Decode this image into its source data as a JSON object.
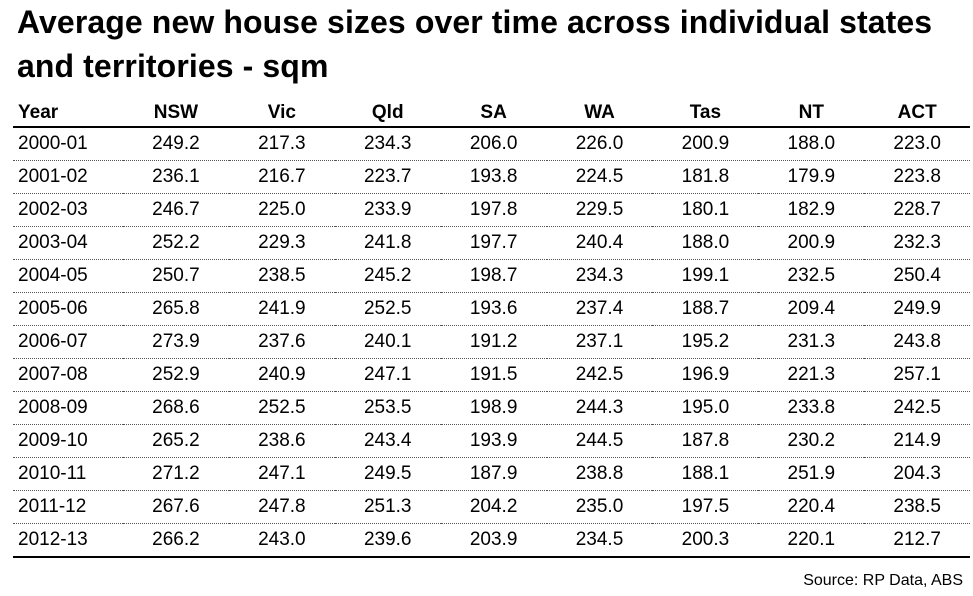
{
  "title": "Average new house sizes over time across individual states and territories - sqm",
  "source": "Source: RP Data, ABS",
  "chart_data": {
    "type": "table",
    "title": "Average new house sizes over time across individual states and territories - sqm",
    "columns": [
      "Year",
      "NSW",
      "Vic",
      "Qld",
      "SA",
      "WA",
      "Tas",
      "NT",
      "ACT"
    ],
    "rows": [
      [
        "2000-01",
        "249.2",
        "217.3",
        "234.3",
        "206.0",
        "226.0",
        "200.9",
        "188.0",
        "223.0"
      ],
      [
        "2001-02",
        "236.1",
        "216.7",
        "223.7",
        "193.8",
        "224.5",
        "181.8",
        "179.9",
        "223.8"
      ],
      [
        "2002-03",
        "246.7",
        "225.0",
        "233.9",
        "197.8",
        "229.5",
        "180.1",
        "182.9",
        "228.7"
      ],
      [
        "2003-04",
        "252.2",
        "229.3",
        "241.8",
        "197.7",
        "240.4",
        "188.0",
        "200.9",
        "232.3"
      ],
      [
        "2004-05",
        "250.7",
        "238.5",
        "245.2",
        "198.7",
        "234.3",
        "199.1",
        "232.5",
        "250.4"
      ],
      [
        "2005-06",
        "265.8",
        "241.9",
        "252.5",
        "193.6",
        "237.4",
        "188.7",
        "209.4",
        "249.9"
      ],
      [
        "2006-07",
        "273.9",
        "237.6",
        "240.1",
        "191.2",
        "237.1",
        "195.2",
        "231.3",
        "243.8"
      ],
      [
        "2007-08",
        "252.9",
        "240.9",
        "247.1",
        "191.5",
        "242.5",
        "196.9",
        "221.3",
        "257.1"
      ],
      [
        "2008-09",
        "268.6",
        "252.5",
        "253.5",
        "198.9",
        "244.3",
        "195.0",
        "233.8",
        "242.5"
      ],
      [
        "2009-10",
        "265.2",
        "238.6",
        "243.4",
        "193.9",
        "244.5",
        "187.8",
        "230.2",
        "214.9"
      ],
      [
        "2010-11",
        "271.2",
        "247.1",
        "249.5",
        "187.9",
        "238.8",
        "188.1",
        "251.9",
        "204.3"
      ],
      [
        "2011-12",
        "267.6",
        "247.8",
        "251.3",
        "204.2",
        "235.0",
        "197.5",
        "220.4",
        "238.5"
      ],
      [
        "2012-13",
        "266.2",
        "243.0",
        "239.6",
        "203.9",
        "234.5",
        "200.3",
        "220.1",
        "212.7"
      ]
    ]
  }
}
